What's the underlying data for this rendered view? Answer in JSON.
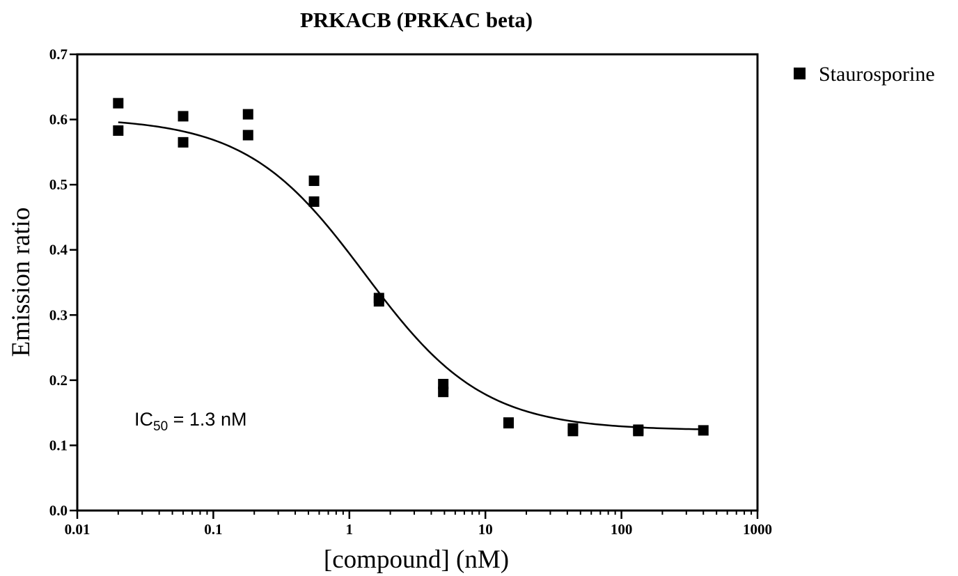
{
  "chart_data": {
    "type": "scatter",
    "title": "PRKACB (PRKAC beta)",
    "xlabel": "[compound] (nM)",
    "ylabel": "Emission ratio",
    "x_scale": "log",
    "xlim": [
      0.01,
      1000
    ],
    "ylim": [
      0.0,
      0.7
    ],
    "x_ticks": [
      0.01,
      0.1,
      1,
      10,
      100,
      1000
    ],
    "x_tick_labels": [
      "0.01",
      "0.1",
      "1",
      "10",
      "100",
      "1000"
    ],
    "y_ticks": [
      0.0,
      0.1,
      0.2,
      0.3,
      0.4,
      0.5,
      0.6,
      0.7
    ],
    "y_tick_labels": [
      "0.0",
      "0.1",
      "0.2",
      "0.3",
      "0.4",
      "0.5",
      "0.6",
      "0.7"
    ],
    "grid": false,
    "legend_position": "outside right, top",
    "series": [
      {
        "name": "Staurosporine",
        "marker": "square",
        "color": "#000000",
        "points": [
          {
            "x": 0.02,
            "y": 0.625
          },
          {
            "x": 0.02,
            "y": 0.583
          },
          {
            "x": 0.06,
            "y": 0.605
          },
          {
            "x": 0.06,
            "y": 0.565
          },
          {
            "x": 0.18,
            "y": 0.608
          },
          {
            "x": 0.18,
            "y": 0.576
          },
          {
            "x": 0.55,
            "y": 0.506
          },
          {
            "x": 0.55,
            "y": 0.474
          },
          {
            "x": 1.65,
            "y": 0.326
          },
          {
            "x": 1.65,
            "y": 0.321
          },
          {
            "x": 4.9,
            "y": 0.194
          },
          {
            "x": 4.9,
            "y": 0.182
          },
          {
            "x": 14.8,
            "y": 0.135
          },
          {
            "x": 14.8,
            "y": 0.134
          },
          {
            "x": 44,
            "y": 0.126
          },
          {
            "x": 44,
            "y": 0.122
          },
          {
            "x": 133,
            "y": 0.124
          },
          {
            "x": 133,
            "y": 0.122
          },
          {
            "x": 400,
            "y": 0.123
          }
        ]
      }
    ],
    "fit": {
      "model": "sigmoidal dose-response",
      "top": 0.603,
      "bottom": 0.123,
      "ic50": 1.3,
      "hill_slope": 1.0,
      "x_range": [
        0.02,
        400
      ]
    },
    "annotation": {
      "prefix": "IC",
      "subscript": "50",
      "text": " = 1.3    nM"
    }
  }
}
